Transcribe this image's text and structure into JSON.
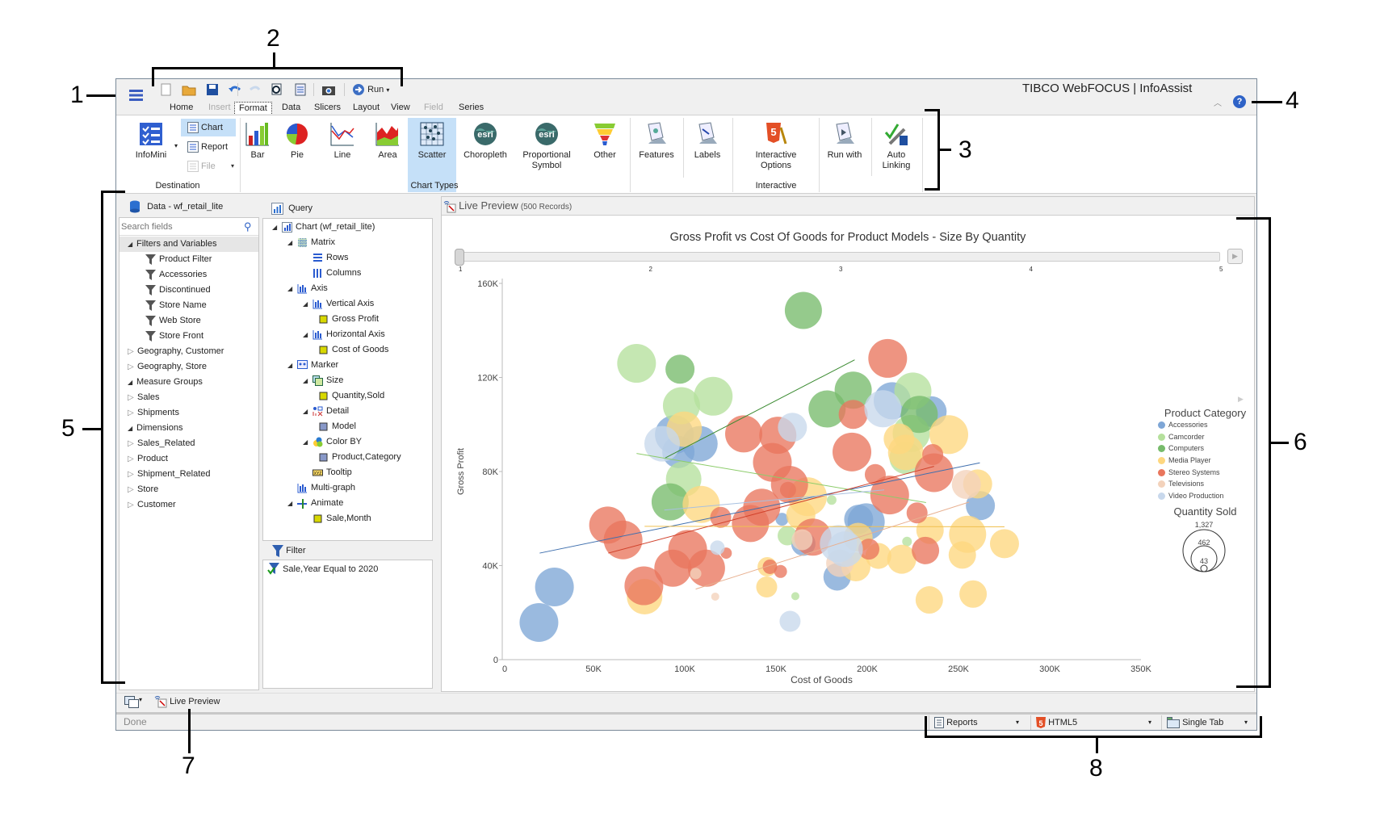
{
  "app": {
    "brand": "TIBCO WebFOCUS | InfoAssist",
    "brand_prefix": "TIBC",
    "brand_mid": "WebFOCUS",
    "brand_suffix": "| InfoAssist"
  },
  "quick_access": {
    "items": [
      {
        "name": "new-icon"
      },
      {
        "name": "open-icon"
      },
      {
        "name": "save-icon"
      },
      {
        "name": "undo-icon"
      },
      {
        "name": "redo-icon"
      },
      {
        "name": "print-preview-icon"
      },
      {
        "name": "document-icon"
      },
      {
        "name": "camera-icon"
      }
    ],
    "run_label": "Run"
  },
  "tabs": [
    {
      "label": "Home",
      "state": "normal"
    },
    {
      "label": "Insert",
      "state": "disabled"
    },
    {
      "label": "Format",
      "state": "selected"
    },
    {
      "label": "Data",
      "state": "normal"
    },
    {
      "label": "Slicers",
      "state": "normal"
    },
    {
      "label": "Layout",
      "state": "normal"
    },
    {
      "label": "View",
      "state": "normal"
    },
    {
      "label": "Field",
      "state": "disabled"
    },
    {
      "label": "Series",
      "state": "normal"
    }
  ],
  "ribbon": {
    "infomini": "InfoMini",
    "destination": [
      {
        "label": "Chart",
        "selected": true
      },
      {
        "label": "Report",
        "selected": false
      },
      {
        "label": "File",
        "disabled": true
      }
    ],
    "chart_types": [
      {
        "label": "Bar",
        "icon": "bar-chart-icon"
      },
      {
        "label": "Pie",
        "icon": "pie-chart-icon"
      },
      {
        "label": "Line",
        "icon": "line-chart-icon"
      },
      {
        "label": "Area",
        "icon": "area-chart-icon"
      },
      {
        "label": "Scatter",
        "icon": "scatter-chart-icon",
        "selected": true
      },
      {
        "label": "Choropleth",
        "icon": "esri-globe-icon"
      },
      {
        "label": "Proportional Symbol",
        "icon": "esri-globe-icon"
      },
      {
        "label": "Other",
        "icon": "funnel-chart-icon"
      }
    ],
    "features": "Features",
    "labels": "Labels",
    "interactive_options": "Interactive Options",
    "run_with": "Run with",
    "auto_linking": "Auto Linking",
    "groups": {
      "destination": "Destination",
      "chart_types": "Chart Types",
      "interactive": "Interactive"
    }
  },
  "data_panel": {
    "title": "Data - wf_retail_lite",
    "search_placeholder": "Search fields",
    "items": [
      {
        "label": "Filters and Variables",
        "level": 0,
        "state": "expanded",
        "selected": true
      },
      {
        "label": "Product Filter",
        "level": 1,
        "icon": "filter"
      },
      {
        "label": "Accessories",
        "level": 1,
        "icon": "filter"
      },
      {
        "label": "Discontinued",
        "level": 1,
        "icon": "filter"
      },
      {
        "label": "Store Name",
        "level": 1,
        "icon": "filter"
      },
      {
        "label": "Web Store",
        "level": 1,
        "icon": "filter"
      },
      {
        "label": "Store Front",
        "level": 1,
        "icon": "filter"
      },
      {
        "label": "Geography, Customer",
        "level": 0,
        "state": "collapsed"
      },
      {
        "label": "Geography, Store",
        "level": 0,
        "state": "collapsed"
      },
      {
        "label": "Measure Groups",
        "level": 0,
        "state": "expanded"
      },
      {
        "label": "Sales",
        "level": 0,
        "state": "collapsed"
      },
      {
        "label": "Shipments",
        "level": 0,
        "state": "collapsed"
      },
      {
        "label": "Dimensions",
        "level": 0,
        "state": "expanded"
      },
      {
        "label": "Sales_Related",
        "level": 0,
        "state": "collapsed"
      },
      {
        "label": "Product",
        "level": 0,
        "state": "collapsed"
      },
      {
        "label": "Shipment_Related",
        "level": 0,
        "state": "collapsed"
      },
      {
        "label": "Store",
        "level": 0,
        "state": "collapsed"
      },
      {
        "label": "Customer",
        "level": 0,
        "state": "collapsed"
      }
    ]
  },
  "query_panel": {
    "title": "Query",
    "items": [
      {
        "label": "Chart (wf_retail_lite)",
        "level": 0,
        "state": "expanded",
        "icon": "chart"
      },
      {
        "label": "Matrix",
        "level": 1,
        "state": "expanded",
        "icon": "matrix"
      },
      {
        "label": "Rows",
        "level": 2,
        "icon": "rows"
      },
      {
        "label": "Columns",
        "level": 2,
        "icon": "columns"
      },
      {
        "label": "Axis",
        "level": 1,
        "state": "expanded",
        "icon": "axis"
      },
      {
        "label": "Vertical Axis",
        "level": 2,
        "state": "expanded",
        "icon": "axis"
      },
      {
        "label": "Gross Profit",
        "level": 3,
        "icon": "measure"
      },
      {
        "label": "Horizontal Axis",
        "level": 2,
        "state": "expanded",
        "icon": "axis"
      },
      {
        "label": "Cost of Goods",
        "level": 3,
        "icon": "measure"
      },
      {
        "label": "Marker",
        "level": 1,
        "state": "expanded",
        "icon": "marker"
      },
      {
        "label": "Size",
        "level": 2,
        "state": "expanded",
        "icon": "size"
      },
      {
        "label": "Quantity,Sold",
        "level": 3,
        "icon": "measure"
      },
      {
        "label": "Detail",
        "level": 2,
        "state": "expanded",
        "icon": "detail"
      },
      {
        "label": "Model",
        "level": 3,
        "icon": "dimension"
      },
      {
        "label": "Color BY",
        "level": 2,
        "state": "expanded",
        "icon": "color"
      },
      {
        "label": "Product,Category",
        "level": 3,
        "icon": "dimension"
      },
      {
        "label": "Tooltip",
        "level": 2,
        "icon": "tooltip"
      },
      {
        "label": "Multi-graph",
        "level": 1,
        "icon": "axis"
      },
      {
        "label": "Animate",
        "level": 1,
        "state": "expanded",
        "icon": "animate"
      },
      {
        "label": "Sale,Month",
        "level": 2,
        "icon": "measure"
      }
    ]
  },
  "filter_panel": {
    "title": "Filter",
    "items": [
      "Sale,Year Equal to 2020"
    ]
  },
  "preview": {
    "title": "Live Preview",
    "records": "(500 Records)"
  },
  "bottom_bar": {
    "live_preview": "Live Preview"
  },
  "status": {
    "text": "Done",
    "reports": "Reports",
    "format": "HTML5",
    "tab_mode": "Single Tab"
  },
  "callouts": [
    "1",
    "2",
    "3",
    "4",
    "5",
    "6",
    "7",
    "8"
  ],
  "chart_data": {
    "type": "scatter",
    "title": "Gross Profit vs Cost Of Goods for Product Models - Size By Quantity",
    "xlabel": "Cost of Goods",
    "ylabel": "Gross Profit",
    "xlim": [
      0,
      350000
    ],
    "ylim": [
      0,
      160000
    ],
    "xticks": [
      {
        "v": 0,
        "label": "0"
      },
      {
        "v": 50000,
        "label": "50K"
      },
      {
        "v": 100000,
        "label": "100K"
      },
      {
        "v": 150000,
        "label": "150K"
      },
      {
        "v": 200000,
        "label": "200K"
      },
      {
        "v": 250000,
        "label": "250K"
      },
      {
        "v": 300000,
        "label": "300K"
      },
      {
        "v": 350000,
        "label": "350K"
      }
    ],
    "yticks": [
      {
        "v": 0,
        "label": "0"
      },
      {
        "v": 40000,
        "label": "40K"
      },
      {
        "v": 80000,
        "label": "80K"
      },
      {
        "v": 120000,
        "label": "120K"
      },
      {
        "v": 160000,
        "label": "160K"
      }
    ],
    "animation_slider": {
      "labels": [
        "1",
        "2",
        "3",
        "4",
        "5"
      ],
      "value": 1
    },
    "legend": {
      "title": "Product Category",
      "placement": "right",
      "entries": [
        {
          "name": "Accessories",
          "color": "#7ea6d6"
        },
        {
          "name": "Camcorder",
          "color": "#b5e09c"
        },
        {
          "name": "Computers",
          "color": "#77bb6b"
        },
        {
          "name": "Media Player",
          "color": "#fed77f"
        },
        {
          "name": "Stereo Systems",
          "color": "#e9765d"
        },
        {
          "name": "Televisions",
          "color": "#f3d2bb"
        },
        {
          "name": "Video Production",
          "color": "#c8d8ec"
        }
      ],
      "size_title": "Quantity Sold",
      "size_values": [
        "1,327",
        "462",
        "43"
      ]
    },
    "size_max": 1327,
    "series": [
      {
        "name": "Accessories",
        "points": [
          [
            94300,
            95700,
            1223
          ],
          [
            108300,
            91800,
            1028
          ],
          [
            96500,
            88300,
            849
          ],
          [
            153300,
            59700,
            136
          ],
          [
            165000,
            49300,
            478
          ],
          [
            195300,
            59700,
            688
          ],
          [
            28600,
            30900,
            1223
          ],
          [
            20100,
            15800,
            1223
          ],
          [
            183500,
            35200,
            613
          ],
          [
            213700,
            110100,
            1123
          ],
          [
            235100,
            105500,
            766
          ],
          [
            262000,
            65500,
            688
          ],
          [
            199400,
            58600,
            1123
          ]
        ],
        "trend": [
          [
            20500,
            45300
          ],
          [
            261700,
            83700
          ]
        ]
      },
      {
        "name": "Camcorder",
        "points": [
          [
            73600,
            126000,
            1223
          ],
          [
            115600,
            112000,
            1223
          ],
          [
            98200,
            108000,
            1123
          ],
          [
            99400,
            76800,
            1028
          ],
          [
            180500,
            67900,
            76
          ],
          [
            156200,
            52700,
            306
          ],
          [
            160600,
            27000,
            53
          ],
          [
            225000,
            114200,
            1123
          ],
          [
            224100,
            96200,
            1123
          ],
          [
            221000,
            85800,
            849
          ],
          [
            221800,
            50200,
            76
          ]
        ],
        "trend": [
          [
            73600,
            87700
          ],
          [
            232200,
            66800
          ]
        ]
      },
      {
        "name": "Computers",
        "points": [
          [
            165000,
            148500,
            1123
          ],
          [
            97400,
            123500,
            688
          ],
          [
            178000,
            106600,
            1123
          ],
          [
            192300,
            114600,
            1123
          ],
          [
            92000,
            67100,
            1123
          ],
          [
            228500,
            104300,
            1123
          ]
        ],
        "trend": [
          [
            89400,
            85800
          ],
          [
            193100,
            127500
          ]
        ]
      },
      {
        "name": "Media Player",
        "points": [
          [
            99700,
            98000,
            1028
          ],
          [
            109000,
            66000,
            1123
          ],
          [
            167300,
            69300,
            1223
          ],
          [
            163600,
            61400,
            688
          ],
          [
            78000,
            26800,
            1028
          ],
          [
            145200,
            39500,
            306
          ],
          [
            144900,
            30900,
            359
          ],
          [
            244700,
            95700,
            1223
          ],
          [
            217400,
            93900,
            766
          ],
          [
            221100,
            88100,
            1028
          ],
          [
            260500,
            74700,
            688
          ],
          [
            234400,
            55000,
            613
          ],
          [
            255000,
            53300,
            1123
          ],
          [
            275200,
            49300,
            688
          ],
          [
            206100,
            44100,
            544
          ],
          [
            218900,
            42700,
            688
          ],
          [
            252100,
            44500,
            613
          ],
          [
            193800,
            39500,
            688
          ],
          [
            234000,
            25400,
            613
          ],
          [
            258000,
            27900,
            613
          ],
          [
            195000,
            52000,
            688
          ]
        ],
        "trend": [
          [
            78000,
            56700
          ],
          [
            275200,
            56500
          ]
        ]
      },
      {
        "name": "Stereo Systems",
        "points": [
          [
            132300,
            96000,
            1123
          ],
          [
            151000,
            95400,
            1123
          ],
          [
            148000,
            83900,
            1223
          ],
          [
            192300,
            104300,
            688
          ],
          [
            191600,
            88300,
            1223
          ],
          [
            119700,
            60500,
            359
          ],
          [
            157400,
            74500,
            1123
          ],
          [
            156600,
            72200,
            212
          ],
          [
            142200,
            64800,
            1123
          ],
          [
            136000,
            57900,
            1123
          ],
          [
            170200,
            52100,
            1123
          ],
          [
            57800,
            57200,
            1123
          ],
          [
            66200,
            50900,
            1223
          ],
          [
            101600,
            46900,
            1223
          ],
          [
            93500,
            38900,
            1123
          ],
          [
            111900,
            38900,
            1123
          ],
          [
            77600,
            31400,
            1223
          ],
          [
            122700,
            45300,
            104
          ],
          [
            146700,
            39500,
            172
          ],
          [
            152500,
            37500,
            136
          ],
          [
            211200,
            128100,
            1223
          ],
          [
            235900,
            87200,
            359
          ],
          [
            236600,
            79500,
            1223
          ],
          [
            204400,
            78700,
            359
          ],
          [
            212300,
            70000,
            1223
          ],
          [
            227300,
            62400,
            359
          ],
          [
            231900,
            46400,
            613
          ],
          [
            200900,
            47000,
            359
          ]
        ],
        "trend": [
          [
            58100,
            45300
          ],
          [
            236600,
            82200
          ]
        ]
      },
      {
        "name": "Televisions",
        "points": [
          [
            164300,
            51000,
            359
          ],
          [
            185000,
            41000,
            613
          ],
          [
            106000,
            36600,
            104
          ],
          [
            116700,
            26800,
            53
          ],
          [
            254300,
            74500,
            688
          ]
        ],
        "trend": [
          [
            106000,
            30000
          ],
          [
            255800,
            67000
          ]
        ]
      },
      {
        "name": "Video Production",
        "points": [
          [
            87600,
            91800,
            1028
          ],
          [
            159000,
            98800,
            688
          ],
          [
            184200,
            49300,
            1123
          ],
          [
            117900,
            47600,
            172
          ],
          [
            157700,
            16300,
            359
          ],
          [
            208600,
            106700,
            1123
          ],
          [
            187900,
            47000,
            1028
          ]
        ],
        "trend": [
          [
            88800,
            63600
          ],
          [
            209300,
            72200
          ]
        ]
      }
    ]
  }
}
